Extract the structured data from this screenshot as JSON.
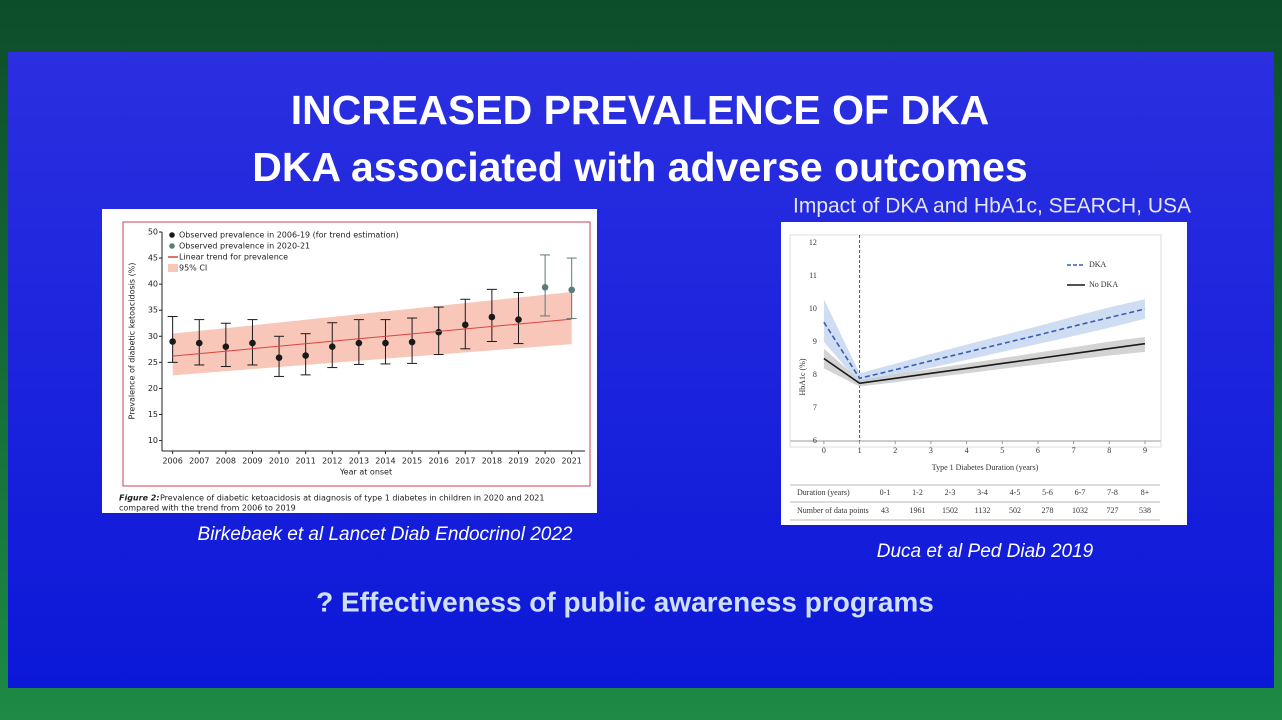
{
  "slide": {
    "title_lines": [
      "INCREASED PREVALENCE OF DKA",
      "DKA associated with adverse outcomes"
    ],
    "left_citation": "Birkebaek et al Lancet Diab Endocrinol 2022",
    "right_citation": "Duca et al Ped Diab 2019",
    "question": "? Effectiveness of public awareness programs"
  },
  "chart_data": [
    {
      "type": "scatter",
      "caption_label": "Figure 2:",
      "caption_lines": [
        "Prevalence of diabetic ketoacidosis at diagnosis of type 1 diabetes in children in 2020 and 2021",
        "compared with the trend from 2006 to 2019"
      ],
      "x_label": "Year at onset",
      "y_label": "Prevalence of diabetic ketoacidosis (%)",
      "xlim": [
        2005.6,
        2021.5
      ],
      "xticks": [
        2006,
        2007,
        2008,
        2009,
        2010,
        2011,
        2012,
        2013,
        2014,
        2015,
        2016,
        2017,
        2018,
        2019,
        2020,
        2021
      ],
      "ylim": [
        8,
        50
      ],
      "yticks": [
        10,
        15,
        20,
        25,
        30,
        35,
        40,
        45,
        50
      ],
      "legend": "upper left",
      "series": [
        {
          "name": "Observed prevalence in 2006-19 (for trend estimation)",
          "style": "errorbar",
          "color": "#1a1a1a",
          "x": [
            2006,
            2007,
            2008,
            2009,
            2010,
            2011,
            2012,
            2013,
            2014,
            2015,
            2016,
            2017,
            2018,
            2019
          ],
          "values": [
            29,
            28.7,
            28,
            28.7,
            25.9,
            26.3,
            28,
            28.7,
            28.7,
            28.9,
            30.8,
            32.2,
            33.7,
            33.2
          ],
          "lower": [
            25,
            24.5,
            24.2,
            24.5,
            22.3,
            22.6,
            24,
            24.6,
            24.7,
            24.8,
            26.5,
            27.6,
            29,
            28.6
          ],
          "upper": [
            33.8,
            33.2,
            32.5,
            33.2,
            30,
            30.5,
            32.6,
            33.2,
            33.2,
            33.5,
            35.6,
            37.1,
            39,
            38.4
          ]
        },
        {
          "name": "Observed prevalence in 2020-21",
          "style": "errorbar",
          "color": "#5b7c78",
          "x": [
            2020,
            2021
          ],
          "values": [
            39.4,
            38.9
          ],
          "lower": [
            33.9,
            33.4
          ],
          "upper": [
            45.6,
            45
          ]
        },
        {
          "name": "Linear trend for prevalence",
          "style": "line",
          "color": "#d9443f",
          "x": [
            2006,
            2021
          ],
          "values": [
            26.2,
            33.3
          ]
        },
        {
          "name": "95% CI",
          "style": "band",
          "color": "#f8c7ba",
          "x": [
            2006,
            2021
          ],
          "lower": [
            22.5,
            28.5
          ],
          "upper": [
            30.5,
            38.5
          ]
        }
      ]
    },
    {
      "type": "line",
      "title": "Impact of DKA and HbA1c, SEARCH, USA",
      "x_label": "Type 1 Diabetes Duration (years)",
      "y_label": "HbA1c (%)",
      "xlim": [
        -0.95,
        9.45
      ],
      "xticks": [
        0,
        1,
        2,
        3,
        4,
        5,
        6,
        7,
        8,
        9
      ],
      "ylim": [
        6,
        12
      ],
      "yticks": [
        6,
        7,
        8,
        9,
        10,
        11,
        12
      ],
      "legend": "upper right",
      "series": [
        {
          "name": "DKA",
          "style": "line",
          "dash": true,
          "color": "#3a5db5",
          "band_color": "#c2d4ee",
          "x": [
            0,
            1,
            2,
            3,
            4,
            5,
            6,
            7,
            8,
            9
          ],
          "values": [
            9.6,
            7.9,
            8.16,
            8.43,
            8.69,
            8.95,
            9.21,
            9.48,
            9.74,
            10
          ],
          "lower": [
            9,
            7.75,
            7.98,
            8.22,
            8.46,
            8.7,
            8.94,
            9.18,
            9.43,
            9.7
          ],
          "upper": [
            10.3,
            8.05,
            8.34,
            8.64,
            8.92,
            9.2,
            9.48,
            9.77,
            10.05,
            10.3
          ]
        },
        {
          "name": "No DKA",
          "style": "line",
          "dash": false,
          "color": "#1a1a1a",
          "band_color": "#c8c8c8",
          "x": [
            0,
            1,
            2,
            3,
            4,
            5,
            6,
            7,
            8,
            9
          ],
          "values": [
            8.5,
            7.75,
            7.9,
            8.05,
            8.2,
            8.35,
            8.5,
            8.65,
            8.8,
            8.95
          ],
          "lower": [
            8.2,
            7.65,
            7.78,
            7.92,
            8.05,
            8.19,
            8.32,
            8.46,
            8.59,
            8.7
          ],
          "upper": [
            8.8,
            7.85,
            8.02,
            8.18,
            8.35,
            8.51,
            8.68,
            8.84,
            9.01,
            9.15
          ]
        }
      ],
      "table": {
        "header": [
          "Duration (years)",
          "0-1",
          "1-2",
          "2-3",
          "3-4",
          "4-5",
          "5-6",
          "6-7",
          "7-8",
          "8+"
        ],
        "rows": [
          [
            "Number of data points",
            43,
            1961,
            1502,
            1132,
            502,
            278,
            1032,
            727,
            538
          ]
        ]
      }
    }
  ]
}
